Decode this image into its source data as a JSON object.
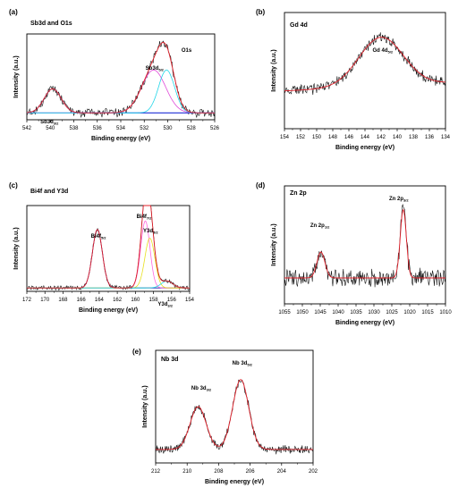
{
  "panels": [
    {
      "label": "(a)",
      "title": "Sb3d and O1s",
      "xlabel": "Binding energy (eV)",
      "ylabel": "Intensity (a.u.)",
      "ticks": [
        "542",
        "540",
        "538",
        "536",
        "534",
        "532",
        "530",
        "528",
        "526"
      ],
      "annotations": [
        {
          "main": "Sb3d",
          "sub": "3/2"
        },
        {
          "main": "Sb3d",
          "sub": "5/2"
        },
        {
          "main": "O1s",
          "sub": ""
        }
      ]
    },
    {
      "label": "(b)",
      "title": "Gd 4d",
      "xlabel": "Binding energy (eV)",
      "ylabel": "Intensity (a.u.)",
      "ticks": [
        "154",
        "152",
        "150",
        "148",
        "146",
        "144",
        "142",
        "140",
        "138",
        "136",
        "134"
      ],
      "annotations": [
        {
          "main": "Gd 4d",
          "sub": "5/2"
        }
      ]
    },
    {
      "label": "(c)",
      "title": "Bi4f and Y3d",
      "xlabel": "Binding energy (eV)",
      "ylabel": "Intensity (a.u.)",
      "ticks": [
        "172",
        "170",
        "168",
        "166",
        "164",
        "162",
        "160",
        "158",
        "156",
        "154"
      ],
      "annotations": [
        {
          "main": "Bi4f",
          "sub": "5/2"
        },
        {
          "main": "Bi4f",
          "sub": "7/2"
        },
        {
          "main": "Y3d",
          "sub": "5/2"
        },
        {
          "main": "Y3d",
          "sub": "3/2"
        }
      ]
    },
    {
      "label": "(d)",
      "title": "Zn 2p",
      "xlabel": "Binding energy (eV)",
      "ylabel": "Intensity (a.u.)",
      "ticks": [
        "1055",
        "1050",
        "1045",
        "1040",
        "1035",
        "1030",
        "1025",
        "1020",
        "1015",
        "1010"
      ],
      "annotations": [
        {
          "main": "Zn 2p",
          "sub": "1/2"
        },
        {
          "main": "Zn 2p",
          "sub": "3/2"
        }
      ]
    },
    {
      "label": "(e)",
      "title": "Nb 3d",
      "xlabel": "Binding energy (eV)",
      "ylabel": "Intensity (a.u.)",
      "ticks": [
        "212",
        "210",
        "208",
        "206",
        "204",
        "202"
      ],
      "annotations": [
        {
          "main": "Nb 3d",
          "sub": "3/2"
        },
        {
          "main": "Nb 3d",
          "sub": "5/2"
        }
      ]
    }
  ],
  "chart_data": [
    {
      "type": "line",
      "title": "Sb3d and O1s",
      "xlabel": "Binding energy (eV)",
      "ylabel": "Intensity (a.u.)",
      "xlim": [
        542,
        526
      ],
      "x_reversed": true,
      "y_ticks_shown": false,
      "ylim": [
        0,
        100
      ],
      "baseline": 8,
      "peaks": [
        {
          "name": "Sb3d3/2",
          "center": 539.8,
          "height": 28,
          "fwhm": 1.7,
          "color": "#1a2bd6"
        },
        {
          "name": "Sb3d5/2",
          "center": 531.2,
          "height": 50,
          "fwhm": 2.4,
          "color": "#e04ad8"
        },
        {
          "name": "O1s",
          "center": 530.1,
          "height": 50,
          "fwhm": 1.6,
          "color": "#22d6e8"
        }
      ],
      "envelope_color": "#e0202a",
      "background_color": "#1a2bd6",
      "noise": 4
    },
    {
      "type": "line",
      "title": "Gd 4d",
      "xlabel": "Binding energy (eV)",
      "ylabel": "Intensity (a.u.)",
      "xlim": [
        154,
        134
      ],
      "x_reversed": true,
      "y_ticks_shown": false,
      "ylim": [
        0,
        100
      ],
      "baseline": 36,
      "baseline_slope_per_unit": -0.35,
      "peaks": [
        {
          "name": "Gd 4d5/2",
          "center": 142.0,
          "height": 42,
          "fwhm": 6.5,
          "color": "#e0202a"
        }
      ],
      "envelope_color": "#e0202a",
      "noise": 3.5
    },
    {
      "type": "line",
      "title": "Bi4f and Y3d",
      "xlabel": "Binding energy (eV)",
      "ylabel": "Intensity (a.u.)",
      "xlim": [
        172,
        154
      ],
      "x_reversed": true,
      "y_ticks_shown": false,
      "ylim": [
        0,
        100
      ],
      "baseline": 4,
      "peaks": [
        {
          "name": "Bi4f5/2",
          "center": 164.2,
          "height": 68,
          "fwhm": 1.3,
          "color": "#1a2bd6"
        },
        {
          "name": "Bi4f7/2",
          "center": 158.9,
          "height": 78,
          "fwhm": 1.2,
          "color": "#ff66dd"
        },
        {
          "name": "Y3d5/2",
          "center": 158.4,
          "height": 58,
          "fwhm": 1.3,
          "color": "#e8e020"
        },
        {
          "name": "Y3d3/2",
          "center": 156.5,
          "height": 8,
          "fwhm": 1.5,
          "color": "#22d6e8"
        }
      ],
      "envelope_color": "#e0202a",
      "background_color": "#e0a020",
      "noise": 2
    },
    {
      "type": "line",
      "title": "Zn 2p",
      "xlabel": "Binding energy (eV)",
      "ylabel": "Intensity (a.u.)",
      "xlim": [
        1055,
        1010
      ],
      "x_reversed": true,
      "y_ticks_shown": false,
      "ylim": [
        0,
        100
      ],
      "baseline": 22,
      "peaks": [
        {
          "name": "Zn 2p1/2",
          "center": 1044.8,
          "height": 22,
          "fwhm": 2.6,
          "color": "#e0202a"
        },
        {
          "name": "Zn 2p3/2",
          "center": 1021.8,
          "height": 58,
          "fwhm": 2.0,
          "color": "#e0202a"
        }
      ],
      "envelope_color": "#e0202a",
      "noise": 6
    },
    {
      "type": "line",
      "title": "Nb 3d",
      "xlabel": "Binding energy (eV)",
      "ylabel": "Intensity (a.u.)",
      "xlim": [
        212,
        202
      ],
      "x_reversed": true,
      "y_ticks_shown": false,
      "ylim": [
        0,
        100
      ],
      "baseline": 12,
      "peaks": [
        {
          "name": "Nb 3d3/2",
          "center": 209.3,
          "height": 38,
          "fwhm": 1.2,
          "color": "#e0202a"
        },
        {
          "name": "Nb 3d5/2",
          "center": 206.6,
          "height": 62,
          "fwhm": 1.2,
          "color": "#e0202a"
        }
      ],
      "envelope_color": "#e0202a",
      "noise": 3
    }
  ]
}
